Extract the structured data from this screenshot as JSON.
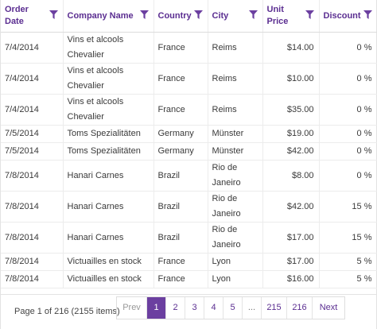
{
  "grid": {
    "columns": [
      {
        "label": "Order Date",
        "align": "left"
      },
      {
        "label": "Company Name",
        "align": "left"
      },
      {
        "label": "Country",
        "align": "left"
      },
      {
        "label": "City",
        "align": "left"
      },
      {
        "label": "Unit Price",
        "align": "right"
      },
      {
        "label": "Discount",
        "align": "right"
      }
    ],
    "rows": [
      {
        "order_date": "7/4/2014",
        "company": "Vins et alcools Chevalier",
        "country": "France",
        "city": "Reims",
        "unit_price": "$14.00",
        "discount": "0 %"
      },
      {
        "order_date": "7/4/2014",
        "company": "Vins et alcools Chevalier",
        "country": "France",
        "city": "Reims",
        "unit_price": "$10.00",
        "discount": "0 %"
      },
      {
        "order_date": "7/4/2014",
        "company": "Vins et alcools Chevalier",
        "country": "France",
        "city": "Reims",
        "unit_price": "$35.00",
        "discount": "0 %"
      },
      {
        "order_date": "7/5/2014",
        "company": "Toms Spezialitäten",
        "country": "Germany",
        "city": "Münster",
        "unit_price": "$19.00",
        "discount": "0 %"
      },
      {
        "order_date": "7/5/2014",
        "company": "Toms Spezialitäten",
        "country": "Germany",
        "city": "Münster",
        "unit_price": "$42.00",
        "discount": "0 %"
      },
      {
        "order_date": "7/8/2014",
        "company": "Hanari Carnes",
        "country": "Brazil",
        "city": "Rio de Janeiro",
        "unit_price": "$8.00",
        "discount": "0 %"
      },
      {
        "order_date": "7/8/2014",
        "company": "Hanari Carnes",
        "country": "Brazil",
        "city": "Rio de Janeiro",
        "unit_price": "$42.00",
        "discount": "15 %"
      },
      {
        "order_date": "7/8/2014",
        "company": "Hanari Carnes",
        "country": "Brazil",
        "city": "Rio de Janeiro",
        "unit_price": "$17.00",
        "discount": "15 %"
      },
      {
        "order_date": "7/8/2014",
        "company": "Victuailles en stock",
        "country": "France",
        "city": "Lyon",
        "unit_price": "$17.00",
        "discount": "5 %"
      },
      {
        "order_date": "7/8/2014",
        "company": "Victuailles en stock",
        "country": "France",
        "city": "Lyon",
        "unit_price": "$16.00",
        "discount": "5 %"
      }
    ],
    "filter_icon": "filter-icon"
  },
  "pager": {
    "info": "Page 1 of 216 (2155 items)",
    "prev_label": "Prev",
    "next_label": "Next",
    "ellipsis": "...",
    "pages": [
      "1",
      "2",
      "3",
      "4",
      "5",
      "215",
      "216"
    ],
    "current_page": "1"
  },
  "colors": {
    "accent": "#5b2e91",
    "active_page_bg": "#6b3fa0",
    "border": "#e3e3e3"
  }
}
